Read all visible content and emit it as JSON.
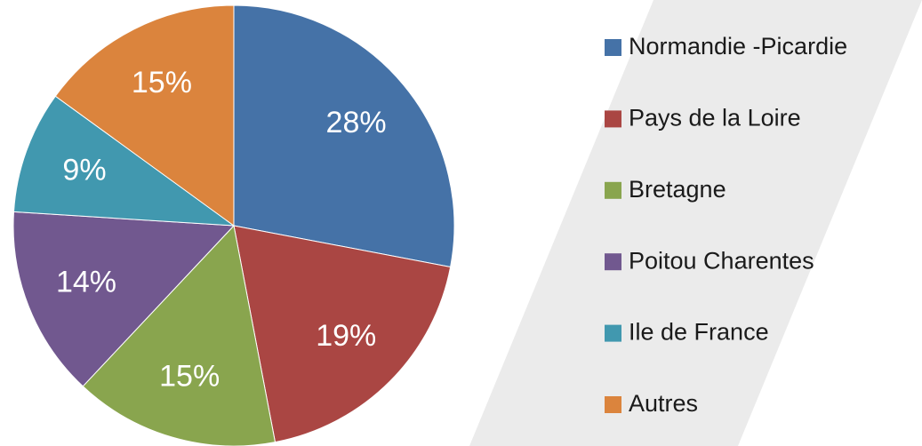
{
  "chart_data": {
    "type": "pie",
    "categories": [
      "Normandie -Picardie",
      "Pays de la Loire",
      "Bretagne",
      "Poitou Charentes",
      "Ile de France",
      "Autres"
    ],
    "values": [
      28,
      19,
      15,
      14,
      9,
      15
    ],
    "value_labels": [
      "28%",
      "19%",
      "15%",
      "14%",
      "9%",
      "15%"
    ],
    "colors": [
      "#4572a7",
      "#aa4643",
      "#89a54e",
      "#71588f",
      "#4198af",
      "#db843d"
    ],
    "legend": "right"
  }
}
